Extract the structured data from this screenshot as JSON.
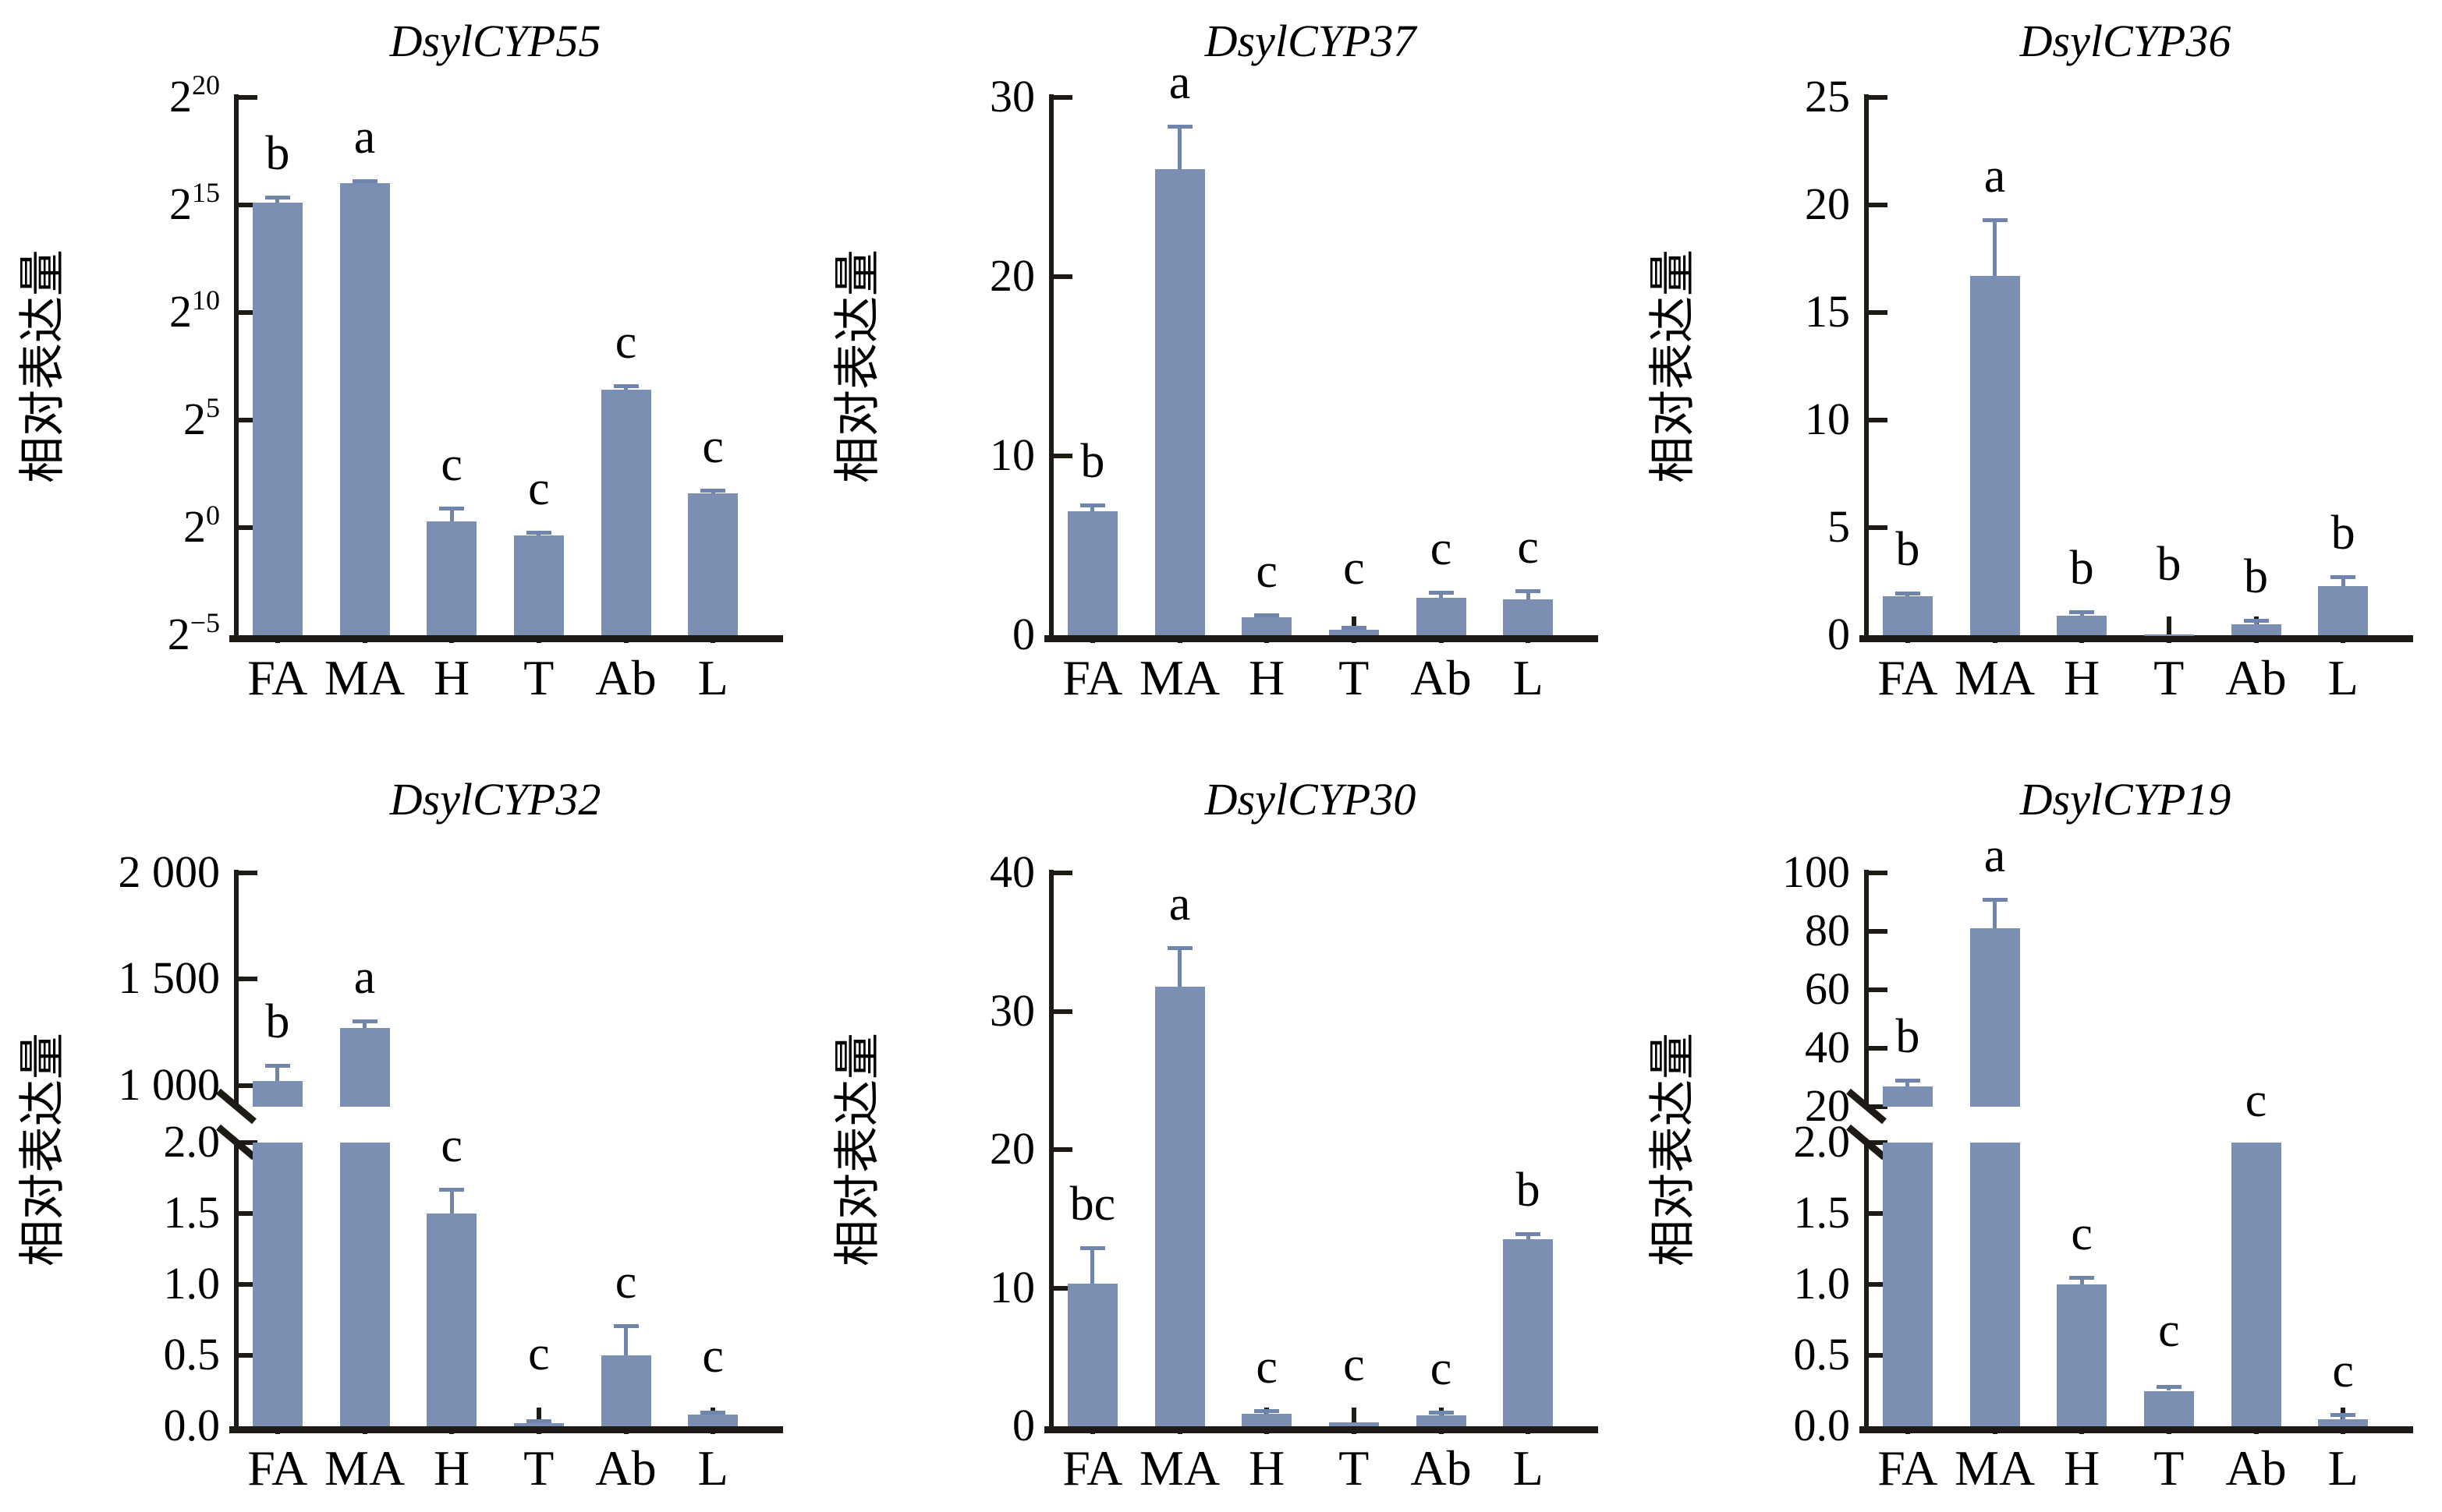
{
  "figure_type": "gene-expression-bar-panel",
  "ylabel": "相对表达量",
  "categories": [
    "FA",
    "MA",
    "H",
    "T",
    "Ab",
    "L"
  ],
  "colors": {
    "bar": "#7b8fb3",
    "error": "#7085ac",
    "axis": "#1e1a16",
    "text": "#000000",
    "background": "#ffffff"
  },
  "chart_data": [
    {
      "type": "bar",
      "title": "DsylCYP55",
      "scale": "log2",
      "ylabel": "相对表达量",
      "ylim_log2": [
        -5,
        20
      ],
      "yticks": [
        {
          "base": "2",
          "sup": "20",
          "log2": 20
        },
        {
          "base": "2",
          "sup": "15",
          "log2": 15
        },
        {
          "base": "2",
          "sup": "10",
          "log2": 10
        },
        {
          "base": "2",
          "sup": "5",
          "log2": 5
        },
        {
          "base": "2",
          "sup": "0",
          "log2": 0
        },
        {
          "base": "2",
          "sup": "−5",
          "log2": -5
        }
      ],
      "bars": [
        {
          "category": "FA",
          "log2_value": 15.1,
          "log2_errtop": 15.35,
          "letter": "b"
        },
        {
          "category": "MA",
          "log2_value": 16.0,
          "log2_errtop": 16.12,
          "letter": "a"
        },
        {
          "category": "H",
          "log2_value": 0.3,
          "log2_errtop": 0.9,
          "letter": "c"
        },
        {
          "category": "T",
          "log2_value": -0.35,
          "log2_errtop": -0.2,
          "letter": "c"
        },
        {
          "category": "Ab",
          "log2_value": 6.4,
          "log2_errtop": 6.6,
          "letter": "c"
        },
        {
          "category": "L",
          "log2_value": 1.6,
          "log2_errtop": 1.75,
          "letter": "c"
        }
      ]
    },
    {
      "type": "bar",
      "title": "DsylCYP37",
      "scale": "linear",
      "ylabel": "相对表达量",
      "ylim": [
        0,
        30
      ],
      "yticks": [
        {
          "label": "30",
          "value": 30
        },
        {
          "label": "20",
          "value": 20
        },
        {
          "label": "10",
          "value": 10
        },
        {
          "label": "0",
          "value": 0
        }
      ],
      "bars": [
        {
          "category": "FA",
          "value": 6.9,
          "errtop": 7.25,
          "letter": "b"
        },
        {
          "category": "MA",
          "value": 26.0,
          "errtop": 28.4,
          "letter": "a"
        },
        {
          "category": "H",
          "value": 1.0,
          "errtop": 1.15,
          "letter": "c"
        },
        {
          "category": "T",
          "value": 0.3,
          "errtop": 0.45,
          "letter": "c",
          "letter_lift": 20
        },
        {
          "category": "Ab",
          "value": 2.1,
          "errtop": 2.4,
          "letter": "c"
        },
        {
          "category": "L",
          "value": 2.0,
          "errtop": 2.5,
          "letter": "c"
        }
      ]
    },
    {
      "type": "bar",
      "title": "DsylCYP36",
      "scale": "linear",
      "ylabel": "相对表达量",
      "ylim": [
        0,
        25
      ],
      "yticks": [
        {
          "label": "25",
          "value": 25
        },
        {
          "label": "20",
          "value": 20
        },
        {
          "label": "15",
          "value": 15
        },
        {
          "label": "10",
          "value": 10
        },
        {
          "label": "5",
          "value": 5
        },
        {
          "label": "0",
          "value": 0
        }
      ],
      "bars": [
        {
          "category": "FA",
          "value": 1.8,
          "errtop": 1.95,
          "letter": "b"
        },
        {
          "category": "MA",
          "value": 16.7,
          "errtop": 19.3,
          "letter": "a"
        },
        {
          "category": "H",
          "value": 0.9,
          "errtop": 1.1,
          "letter": "b"
        },
        {
          "category": "T",
          "value": 0.05,
          "errtop": 0.06,
          "letter": "b",
          "letter_lift": 34
        },
        {
          "category": "Ab",
          "value": 0.5,
          "errtop": 0.7,
          "letter": "b"
        },
        {
          "category": "L",
          "value": 2.3,
          "errtop": 2.7,
          "letter": "b"
        }
      ]
    },
    {
      "type": "bar",
      "title": "DsylCYP32",
      "scale": "broken",
      "ylabel": "相对表达量",
      "lower": {
        "ylim": [
          0,
          2
        ],
        "yticks": [
          {
            "label": "2.0",
            "value": 2
          },
          {
            "label": "1.5",
            "value": 1.5
          },
          {
            "label": "1.0",
            "value": 1
          },
          {
            "label": "0.5",
            "value": 0.5
          },
          {
            "label": "0.0",
            "value": 0
          }
        ]
      },
      "upper": {
        "ylim": [
          900,
          2000
        ],
        "yticks": [
          {
            "label": "2 000",
            "value": 2000
          },
          {
            "label": "1 500",
            "value": 1500
          },
          {
            "label": "1 000",
            "value": 1000
          }
        ]
      },
      "bars": [
        {
          "category": "FA",
          "value": 1020,
          "errtop": 1095,
          "letter": "b"
        },
        {
          "category": "MA",
          "value": 1270,
          "errtop": 1305,
          "letter": "a"
        },
        {
          "category": "H",
          "value": 1.5,
          "errtop": 1.67,
          "letter": "c"
        },
        {
          "category": "T",
          "value": 0.02,
          "errtop": 0.04,
          "letter": "c",
          "letter_lift": 30
        },
        {
          "category": "Ab",
          "value": 0.5,
          "errtop": 0.71,
          "letter": "c"
        },
        {
          "category": "L",
          "value": 0.08,
          "errtop": 0.1,
          "letter": "c",
          "letter_lift": 16
        }
      ]
    },
    {
      "type": "bar",
      "title": "DsylCYP30",
      "scale": "linear",
      "ylabel": "相对表达量",
      "ylim": [
        0,
        40
      ],
      "yticks": [
        {
          "label": "40",
          "value": 40
        },
        {
          "label": "30",
          "value": 30
        },
        {
          "label": "20",
          "value": 20
        },
        {
          "label": "10",
          "value": 10
        },
        {
          "label": "0",
          "value": 0
        }
      ],
      "bars": [
        {
          "category": "FA",
          "value": 10.3,
          "errtop": 12.9,
          "letter": "bc"
        },
        {
          "category": "MA",
          "value": 31.8,
          "errtop": 34.6,
          "letter": "a"
        },
        {
          "category": "H",
          "value": 0.9,
          "errtop": 1.1,
          "letter": "c"
        },
        {
          "category": "T",
          "value": 0.3,
          "errtop": 0.45,
          "letter": "c",
          "letter_lift": 18
        },
        {
          "category": "Ab",
          "value": 0.8,
          "errtop": 1.0,
          "letter": "c"
        },
        {
          "category": "L",
          "value": 13.5,
          "errtop": 13.9,
          "letter": "b"
        }
      ]
    },
    {
      "type": "bar",
      "title": "DsylCYP19",
      "scale": "broken",
      "ylabel": "相对表达量",
      "lower": {
        "ylim": [
          0,
          2
        ],
        "yticks": [
          {
            "label": "2.0",
            "value": 2
          },
          {
            "label": "1.5",
            "value": 1.5
          },
          {
            "label": "1.0",
            "value": 1
          },
          {
            "label": "0.5",
            "value": 0.5
          },
          {
            "label": "0.0",
            "value": 0
          }
        ]
      },
      "upper": {
        "ylim": [
          20,
          100
        ],
        "yticks": [
          {
            "label": "100",
            "value": 100
          },
          {
            "label": "80",
            "value": 80
          },
          {
            "label": "60",
            "value": 60
          },
          {
            "label": "40",
            "value": 40
          },
          {
            "label": "20",
            "value": 20
          }
        ]
      },
      "bars": [
        {
          "category": "FA",
          "value": 27,
          "errtop": 29,
          "letter": "b"
        },
        {
          "category": "MA",
          "value": 81,
          "errtop": 91,
          "letter": "a"
        },
        {
          "category": "H",
          "value": 1.0,
          "errtop": 1.05,
          "letter": "c"
        },
        {
          "category": "T",
          "value": 0.25,
          "errtop": 0.28,
          "letter": "c",
          "letter_lift": 16
        },
        {
          "category": "Ab",
          "value": 2.0,
          "errtop": 2.0,
          "letter": "c",
          "at_break": true
        },
        {
          "category": "L",
          "value": 0.05,
          "errtop": 0.08,
          "letter": "c"
        }
      ]
    }
  ]
}
